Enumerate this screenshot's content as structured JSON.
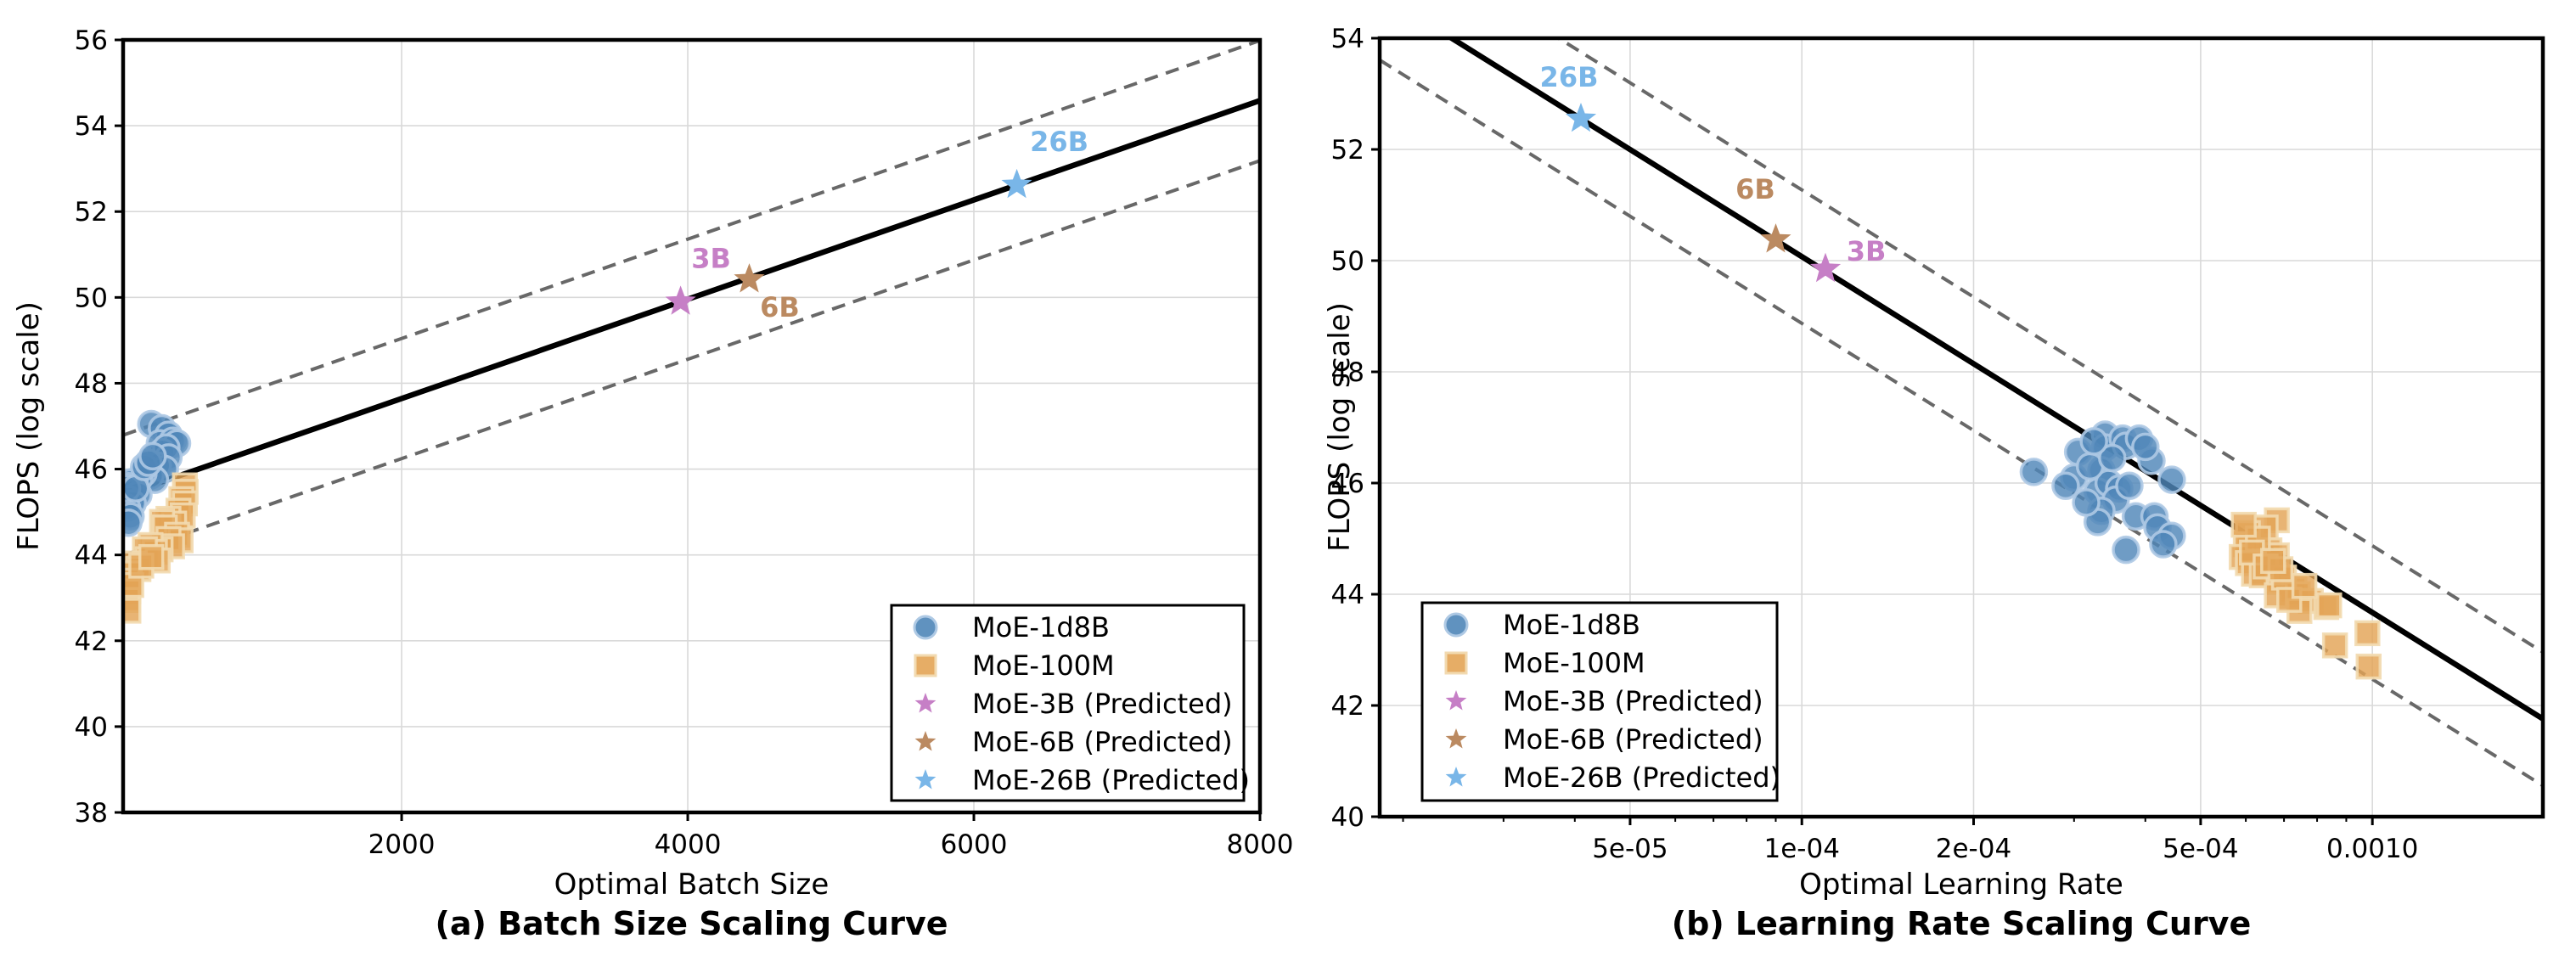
{
  "chart_data": [
    {
      "id": "a",
      "type": "scatter",
      "caption": "(a) Batch Size Scaling Curve",
      "xlabel": "Optimal Batch Size",
      "ylabel": "FLOPS (log scale)",
      "xscale": "linear",
      "xlim": [
        53,
        8000
      ],
      "ylim": [
        38,
        56
      ],
      "grid": true,
      "legend_position": "lower right",
      "x_ticks": [
        {
          "value": 2000,
          "label": "2000"
        },
        {
          "value": 4000,
          "label": "4000"
        },
        {
          "value": 6000,
          "label": "6000"
        },
        {
          "value": 8000,
          "label": "8000"
        }
      ],
      "y_ticks": [
        {
          "value": 38,
          "label": "38"
        },
        {
          "value": 40,
          "label": "40"
        },
        {
          "value": 42,
          "label": "42"
        },
        {
          "value": 44,
          "label": "44"
        },
        {
          "value": 46,
          "label": "46"
        },
        {
          "value": 48,
          "label": "48"
        },
        {
          "value": 50,
          "label": "50"
        },
        {
          "value": 52,
          "label": "52"
        },
        {
          "value": 54,
          "label": "54"
        },
        {
          "value": 56,
          "label": "56"
        }
      ],
      "x_minor_ticks": [],
      "fit_line": {
        "anchor_x": 3950,
        "anchor_y": 49.9,
        "slope_per_unit": 0.001157,
        "band_offset": 1.4,
        "color": "#000000",
        "band_color": "#686868"
      },
      "series": [
        {
          "name": "MoE-1d8B",
          "marker": "circle",
          "color": "#4f86b8",
          "edge": "#aec9e4",
          "points": [
            [
              250,
              47.05
            ],
            [
              325,
              46.95
            ],
            [
              370,
              46.8
            ],
            [
              310,
              46.6
            ],
            [
              400,
              46.66
            ],
            [
              430,
              46.6
            ],
            [
              325,
              46.4
            ],
            [
              355,
              46.5
            ],
            [
              370,
              46.27
            ],
            [
              295,
              46.08
            ],
            [
              345,
              46.0
            ],
            [
              245,
              45.85
            ],
            [
              275,
              45.75
            ],
            [
              195,
              45.9
            ],
            [
              165,
              45.78
            ],
            [
              135,
              45.65
            ],
            [
              105,
              45.69
            ],
            [
              90,
              45.6
            ],
            [
              120,
              45.45
            ],
            [
              160,
              45.4
            ],
            [
              90,
              45.3
            ],
            [
              120,
              45.2
            ],
            [
              80,
              45.1
            ],
            [
              105,
              44.9
            ],
            [
              90,
              44.75
            ],
            [
              80,
              45.55
            ],
            [
              140,
              45.55
            ],
            [
              200,
              46.05
            ],
            [
              230,
              46.15
            ],
            [
              260,
              46.3
            ]
          ]
        },
        {
          "name": "MoE-100M",
          "marker": "square",
          "color": "#e3a455",
          "edge": "#f2dab0",
          "points": [
            [
              485,
              45.62
            ],
            [
              490,
              45.47
            ],
            [
              460,
              45.3
            ],
            [
              485,
              45.2
            ],
            [
              440,
              45.03
            ],
            [
              470,
              44.92
            ],
            [
              370,
              44.84
            ],
            [
              410,
              44.73
            ],
            [
              325,
              44.77
            ],
            [
              345,
              44.64
            ],
            [
              430,
              44.47
            ],
            [
              455,
              44.34
            ],
            [
              370,
              44.37
            ],
            [
              395,
              44.2
            ],
            [
              315,
              44.13
            ],
            [
              245,
              44.23
            ],
            [
              275,
              44.07
            ],
            [
              205,
              44.13
            ],
            [
              225,
              43.9
            ],
            [
              295,
              43.87
            ],
            [
              125,
              43.8
            ],
            [
              160,
              43.67
            ],
            [
              100,
              43.57
            ],
            [
              85,
              43.4
            ],
            [
              90,
              43.15
            ],
            [
              85,
              42.95
            ],
            [
              90,
              42.7
            ],
            [
              110,
              43.3
            ],
            [
              180,
              43.75
            ],
            [
              250,
              43.95
            ]
          ]
        },
        {
          "name": "MoE-3B (Predicted)",
          "marker": "star",
          "color": "#c67fc6",
          "edge": "#c67fc6",
          "points": [
            [
              3950,
              49.9
            ]
          ],
          "point_label": "3B",
          "label_offset": [
            36,
            -40
          ]
        },
        {
          "name": "MoE-6B (Predicted)",
          "marker": "star",
          "color": "#bb8a61",
          "edge": "#bb8a61",
          "points": [
            [
              4430,
              50.42
            ]
          ],
          "point_label": "6B",
          "label_offset": [
            36,
            44
          ]
        },
        {
          "name": "MoE-26B (Predicted)",
          "marker": "star",
          "color": "#79b6e8",
          "edge": "#79b6e8",
          "points": [
            [
              6300,
              52.62
            ]
          ],
          "point_label": "26B",
          "label_offset": [
            50,
            -40
          ]
        }
      ]
    },
    {
      "id": "b",
      "type": "scatter",
      "caption": "(b) Learning Rate Scaling Curve",
      "xlabel": "Optimal Learning Rate",
      "ylabel": "FLOPS (log scale)",
      "xscale": "log",
      "xlim": [
        1.82e-05,
        0.00199
      ],
      "ylim": [
        40,
        54
      ],
      "grid": true,
      "legend_position": "lower left",
      "x_ticks": [
        {
          "value": 5e-05,
          "label": "5e-05"
        },
        {
          "value": 0.0001,
          "label": "1e-04"
        },
        {
          "value": 0.0002,
          "label": "2e-04"
        },
        {
          "value": 0.0005,
          "label": "5e-04"
        },
        {
          "value": 0.001,
          "label": "0.0010"
        }
      ],
      "y_ticks": [
        {
          "value": 40,
          "label": "40"
        },
        {
          "value": 42,
          "label": "42"
        },
        {
          "value": 44,
          "label": "44"
        },
        {
          "value": 46,
          "label": "46"
        },
        {
          "value": 48,
          "label": "48"
        },
        {
          "value": 50,
          "label": "50"
        },
        {
          "value": 52,
          "label": "52"
        },
        {
          "value": 54,
          "label": "54"
        }
      ],
      "x_minor_ticks": [
        2e-05,
        3e-05,
        4e-05,
        6e-05,
        7e-05,
        8e-05,
        9e-05,
        0.0003,
        0.0004,
        0.0006,
        0.0007,
        0.0008,
        0.0009,
        0.002
      ],
      "fit_line": {
        "anchor_x": 4.1e-05,
        "anchor_y": 52.55,
        "slope_per_decade": -6.4,
        "band_offset": 1.2,
        "color": "#000000",
        "band_color": "#686868"
      },
      "series": [
        {
          "name": "MoE-1d8B",
          "marker": "circle",
          "color": "#4f86b8",
          "edge": "#aec9e4",
          "points": [
            [
              0.000255,
              46.2
            ],
            [
              0.000305,
              46.56
            ],
            [
              0.00034,
              46.87
            ],
            [
              0.00034,
              46.64
            ],
            [
              0.000335,
              46.23
            ],
            [
              0.0003,
              46.1
            ],
            [
              0.00033,
              45.85
            ],
            [
              0.000345,
              46.0
            ],
            [
              0.00036,
              45.9
            ],
            [
              0.000355,
              45.7
            ],
            [
              0.000335,
              45.5
            ],
            [
              0.00033,
              45.3
            ],
            [
              0.000365,
              46.8
            ],
            [
              0.00037,
              46.67
            ],
            [
              0.00039,
              46.8
            ],
            [
              0.00041,
              46.4
            ],
            [
              0.000445,
              46.06
            ],
            [
              0.000385,
              45.4
            ],
            [
              0.000415,
              45.4
            ],
            [
              0.00042,
              45.2
            ],
            [
              0.000445,
              45.05
            ],
            [
              0.00037,
              44.8
            ],
            [
              0.00043,
              44.9
            ],
            [
              0.00032,
              46.3
            ],
            [
              0.00035,
              46.45
            ],
            [
              0.00029,
              45.95
            ],
            [
              0.000315,
              45.65
            ],
            [
              0.000375,
              45.95
            ],
            [
              0.0004,
              46.65
            ],
            [
              0.000325,
              46.75
            ]
          ]
        },
        {
          "name": "MoE-100M",
          "marker": "square",
          "color": "#e3a455",
          "edge": "#f2dab0",
          "points": [
            [
              0.00068,
              45.33
            ],
            [
              0.00065,
              45.2
            ],
            [
              0.000605,
              45.1
            ],
            [
              0.0006,
              44.9
            ],
            [
              0.00066,
              44.79
            ],
            [
              0.00068,
              44.7
            ],
            [
              0.00059,
              44.67
            ],
            [
              0.000605,
              44.56
            ],
            [
              0.00062,
              44.37
            ],
            [
              0.00064,
              44.34
            ],
            [
              0.000685,
              44.23
            ],
            [
              0.00073,
              44.1
            ],
            [
              0.00068,
              43.98
            ],
            [
              0.00074,
              44.0
            ],
            [
              0.00078,
              43.88
            ],
            [
              0.000745,
              43.7
            ],
            [
              0.00083,
              43.77
            ],
            [
              0.00084,
              43.8
            ],
            [
              0.00098,
              43.3
            ],
            [
              0.00086,
              43.08
            ],
            [
              0.000985,
              42.7
            ],
            [
              0.00063,
              45.0
            ],
            [
              0.000615,
              44.75
            ],
            [
              0.00065,
              44.5
            ],
            [
              0.0007,
              44.3
            ],
            [
              0.000715,
              43.9
            ],
            [
              0.00069,
              44.45
            ],
            [
              0.00076,
              44.15
            ],
            [
              0.00067,
              44.6
            ],
            [
              0.000595,
              45.25
            ]
          ]
        },
        {
          "name": "MoE-3B (Predicted)",
          "marker": "star",
          "color": "#c67fc6",
          "edge": "#c67fc6",
          "points": [
            [
              0.00011,
              49.85
            ]
          ],
          "point_label": "3B",
          "label_offset": [
            48,
            -10
          ]
        },
        {
          "name": "MoE-6B (Predicted)",
          "marker": "star",
          "color": "#bb8a61",
          "edge": "#bb8a61",
          "points": [
            [
              9e-05,
              50.38
            ]
          ],
          "point_label": "6B",
          "label_offset": [
            -24,
            -48
          ]
        },
        {
          "name": "MoE-26B (Predicted)",
          "marker": "star",
          "color": "#79b6e8",
          "edge": "#79b6e8",
          "points": [
            [
              4.1e-05,
              52.55
            ]
          ],
          "point_label": "26B",
          "label_offset": [
            -14,
            -38
          ]
        }
      ]
    }
  ]
}
